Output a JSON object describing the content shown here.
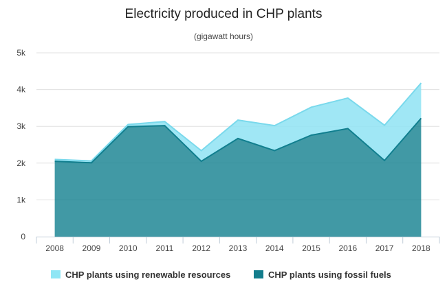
{
  "chart_data": {
    "type": "area",
    "title": "Electricity produced in CHP plants",
    "subtitle": "(gigawatt hours)",
    "x": [
      "2008",
      "2009",
      "2010",
      "2011",
      "2012",
      "2013",
      "2014",
      "2015",
      "2016",
      "2017",
      "2018"
    ],
    "ylim": [
      0,
      5000
    ],
    "y_ticks": [
      {
        "value": 0,
        "label": "0"
      },
      {
        "value": 1000,
        "label": "1k"
      },
      {
        "value": 2000,
        "label": "2k"
      },
      {
        "value": 3000,
        "label": "3k"
      },
      {
        "value": 4000,
        "label": "4k"
      },
      {
        "value": 5000,
        "label": "5k"
      }
    ],
    "stacked": true,
    "grid": true,
    "legend_position": "bottom",
    "series": [
      {
        "name": "CHP plants using renewable resources",
        "color": "#8fe3f3",
        "values": [
          50,
          50,
          60,
          110,
          290,
          500,
          680,
          760,
          830,
          960,
          960
        ]
      },
      {
        "name": "CHP plants using fossil fuels",
        "color": "#117f8f",
        "values": [
          2050,
          2010,
          2990,
          3020,
          2050,
          2670,
          2340,
          2760,
          2940,
          2070,
          3220
        ]
      }
    ]
  }
}
